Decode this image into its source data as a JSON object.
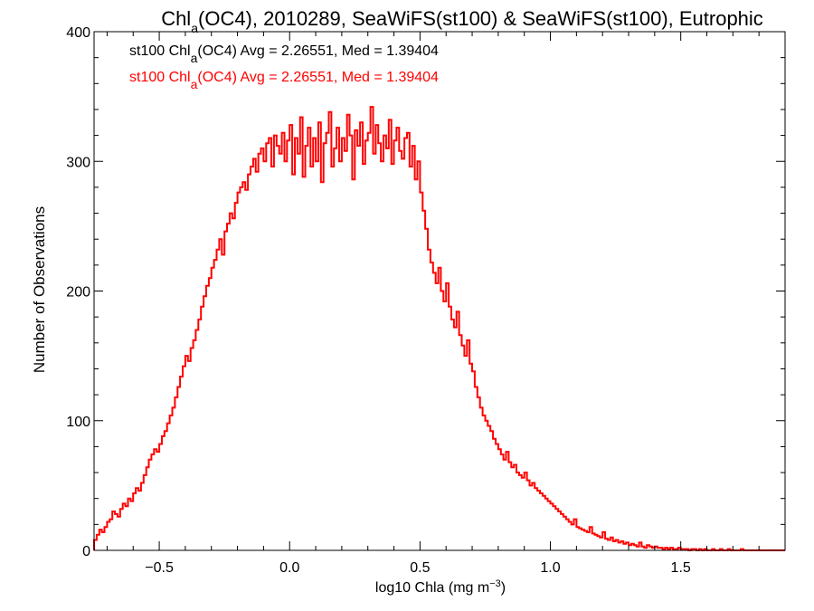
{
  "chart_data": {
    "type": "histogram",
    "title": {
      "prefix": "Chl",
      "subscript": "a",
      "rest": "(OC4), 2010289, SeaWiFS(st100) & SeaWiFS(st100), Eutrophic"
    },
    "xlabel": {
      "main": "log10 Chla (mg m",
      "sup": "−3",
      "end": ")"
    },
    "ylabel": "Number of Observations",
    "xlim": [
      -0.75,
      1.9
    ],
    "ylim": [
      0,
      400
    ],
    "xticks": [
      -0.5,
      0.0,
      0.5,
      1.0,
      1.5
    ],
    "xtick_labels": [
      "−0.5",
      "0.0",
      "0.5",
      "1.0",
      "1.5"
    ],
    "yticks": [
      0,
      100,
      200,
      300,
      400
    ],
    "ytick_labels": [
      "0",
      "100",
      "200",
      "300",
      "400"
    ],
    "legend_placement": "top-left",
    "annotations": [
      {
        "color": "#000000",
        "prefix": "st100 Chl",
        "subscript": "a",
        "rest": "(OC4) Avg = 2.26551, Med = 1.39404"
      },
      {
        "color": "#ff0000",
        "prefix": "st100 Chl",
        "subscript": "a",
        "rest": "(OC4) Avg = 2.26551, Med = 1.39404"
      }
    ],
    "series": [
      {
        "color": "#ff0000",
        "bin_start": -0.75,
        "bin_width": 0.01,
        "values": [
          8,
          12,
          16,
          14,
          18,
          22,
          24,
          30,
          28,
          26,
          32,
          36,
          34,
          40,
          38,
          44,
          48,
          46,
          52,
          58,
          64,
          70,
          74,
          78,
          76,
          82,
          88,
          92,
          98,
          104,
          110,
          118,
          126,
          134,
          142,
          150,
          146,
          156,
          162,
          170,
          178,
          188,
          196,
          204,
          210,
          218,
          224,
          232,
          240,
          228,
          246,
          252,
          260,
          256,
          268,
          276,
          280,
          284,
          278,
          290,
          296,
          302,
          292,
          306,
          310,
          300,
          314,
          318,
          296,
          320,
          312,
          306,
          322,
          300,
          316,
          328,
          290,
          318,
          306,
          334,
          288,
          312,
          326,
          296,
          318,
          300,
          330,
          284,
          314,
          322,
          338,
          296,
          310,
          326,
          300,
          318,
          308,
          336,
          320,
          286,
          324,
          312,
          330,
          298,
          316,
          322,
          342,
          306,
          328,
          314,
          300,
          320,
          310,
          332,
          298,
          316,
          326,
          308,
          302,
          318,
          322,
          296,
          312,
          286,
          300,
          276,
          262,
          248,
          232,
          222,
          214,
          206,
          218,
          200,
          192,
          206,
          188,
          178,
          172,
          184,
          166,
          158,
          150,
          162,
          144,
          138,
          126,
          118,
          110,
          104,
          100,
          96,
          92,
          86,
          82,
          78,
          74,
          70,
          76,
          68,
          64,
          66,
          60,
          58,
          56,
          60,
          54,
          50,
          52,
          48,
          46,
          44,
          42,
          40,
          38,
          36,
          34,
          32,
          30,
          28,
          26,
          24,
          22,
          20,
          24,
          18,
          17,
          16,
          15,
          14,
          18,
          13,
          12,
          11,
          10,
          14,
          9,
          8,
          10,
          7,
          8,
          6,
          7,
          5,
          6,
          4,
          5,
          4,
          3,
          6,
          3,
          2,
          4,
          3,
          2,
          3,
          2,
          2,
          1,
          2,
          1,
          2,
          1,
          1,
          2,
          1,
          1,
          1,
          0,
          1,
          1,
          0,
          1,
          0,
          1,
          0,
          0,
          1,
          0,
          0,
          1,
          0,
          0,
          1,
          0,
          0,
          0,
          0,
          1,
          0,
          0,
          0,
          0,
          0,
          0
        ]
      }
    ]
  }
}
